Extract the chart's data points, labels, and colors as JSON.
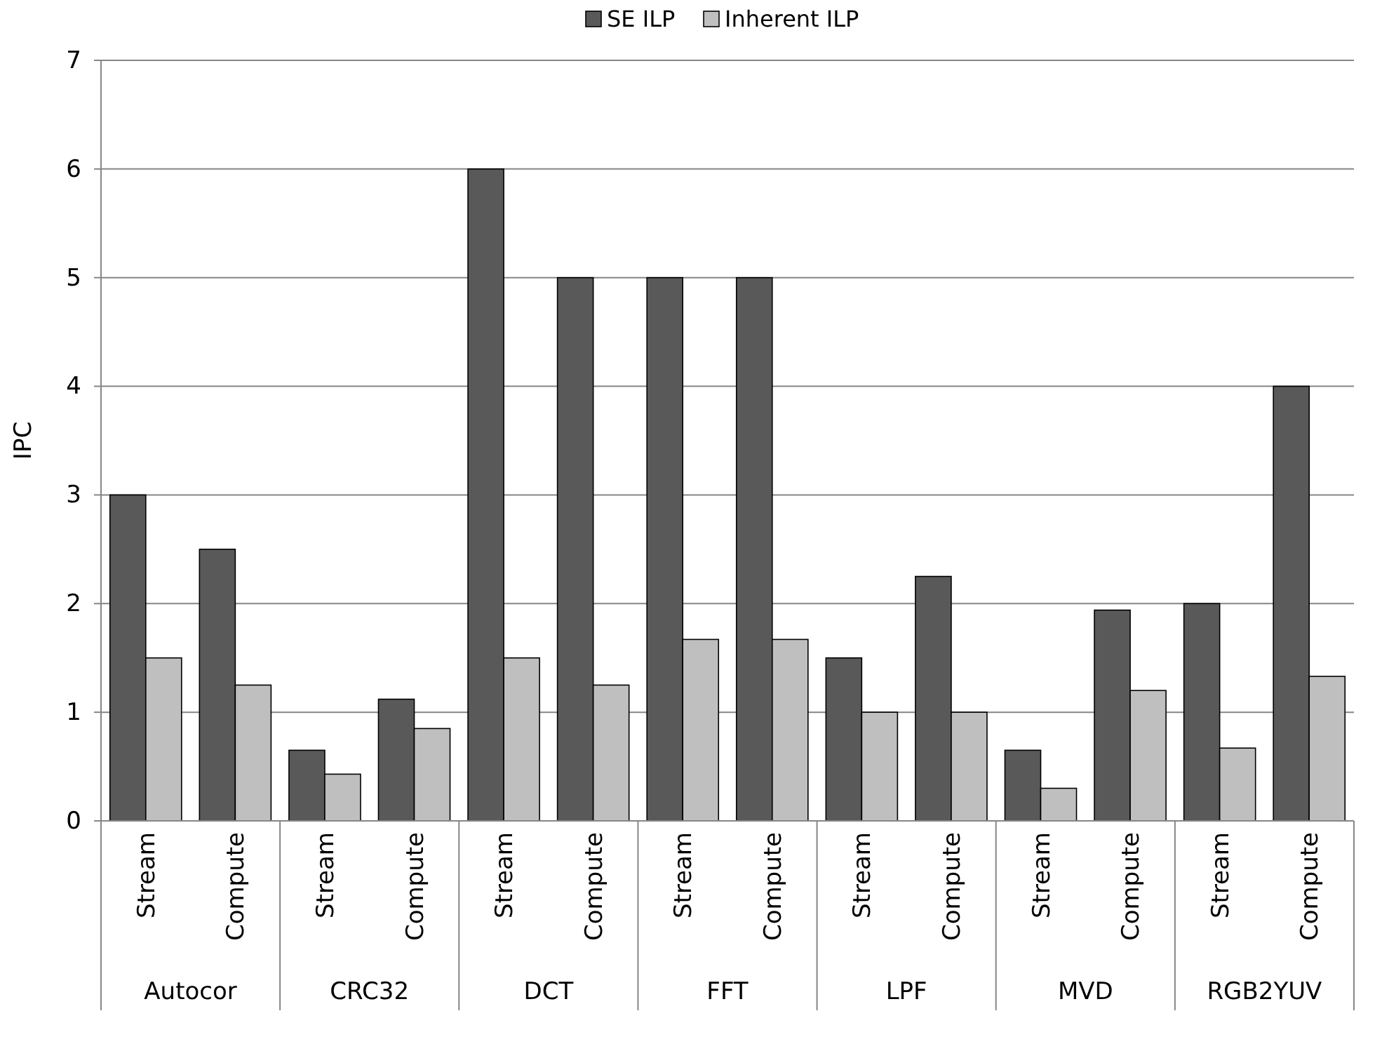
{
  "chart_data": {
    "type": "bar",
    "ylabel": "IPC",
    "categories": [
      "Stream",
      "Compute",
      "Stream",
      "Compute",
      "Stream",
      "Compute",
      "Stream",
      "Compute",
      "Stream",
      "Compute",
      "Stream",
      "Compute",
      "Stream",
      "Compute"
    ],
    "annotations": [
      "Autocor",
      "CRC32",
      "DCT",
      "FFT",
      "LPF",
      "MVD",
      "RGB2YUV"
    ],
    "series": [
      {
        "name": "SE ILP",
        "color": "#595959",
        "values": [
          3,
          2.5,
          0.65,
          1.12,
          6,
          5,
          5,
          5,
          1.5,
          2.25,
          0.65,
          1.94,
          2,
          4
        ]
      },
      {
        "name": "Inherent ILP",
        "color": "#bfbfbf",
        "values": [
          1.5,
          1.25,
          0.43,
          0.85,
          1.5,
          1.25,
          1.67,
          1.67,
          1,
          1,
          0.3,
          1.2,
          0.67,
          1.33
        ]
      }
    ],
    "ylim": [
      0,
      7
    ],
    "yticks": [
      0,
      1,
      2,
      3,
      4,
      5,
      6,
      7
    ],
    "grid": "y",
    "legend": "top"
  }
}
